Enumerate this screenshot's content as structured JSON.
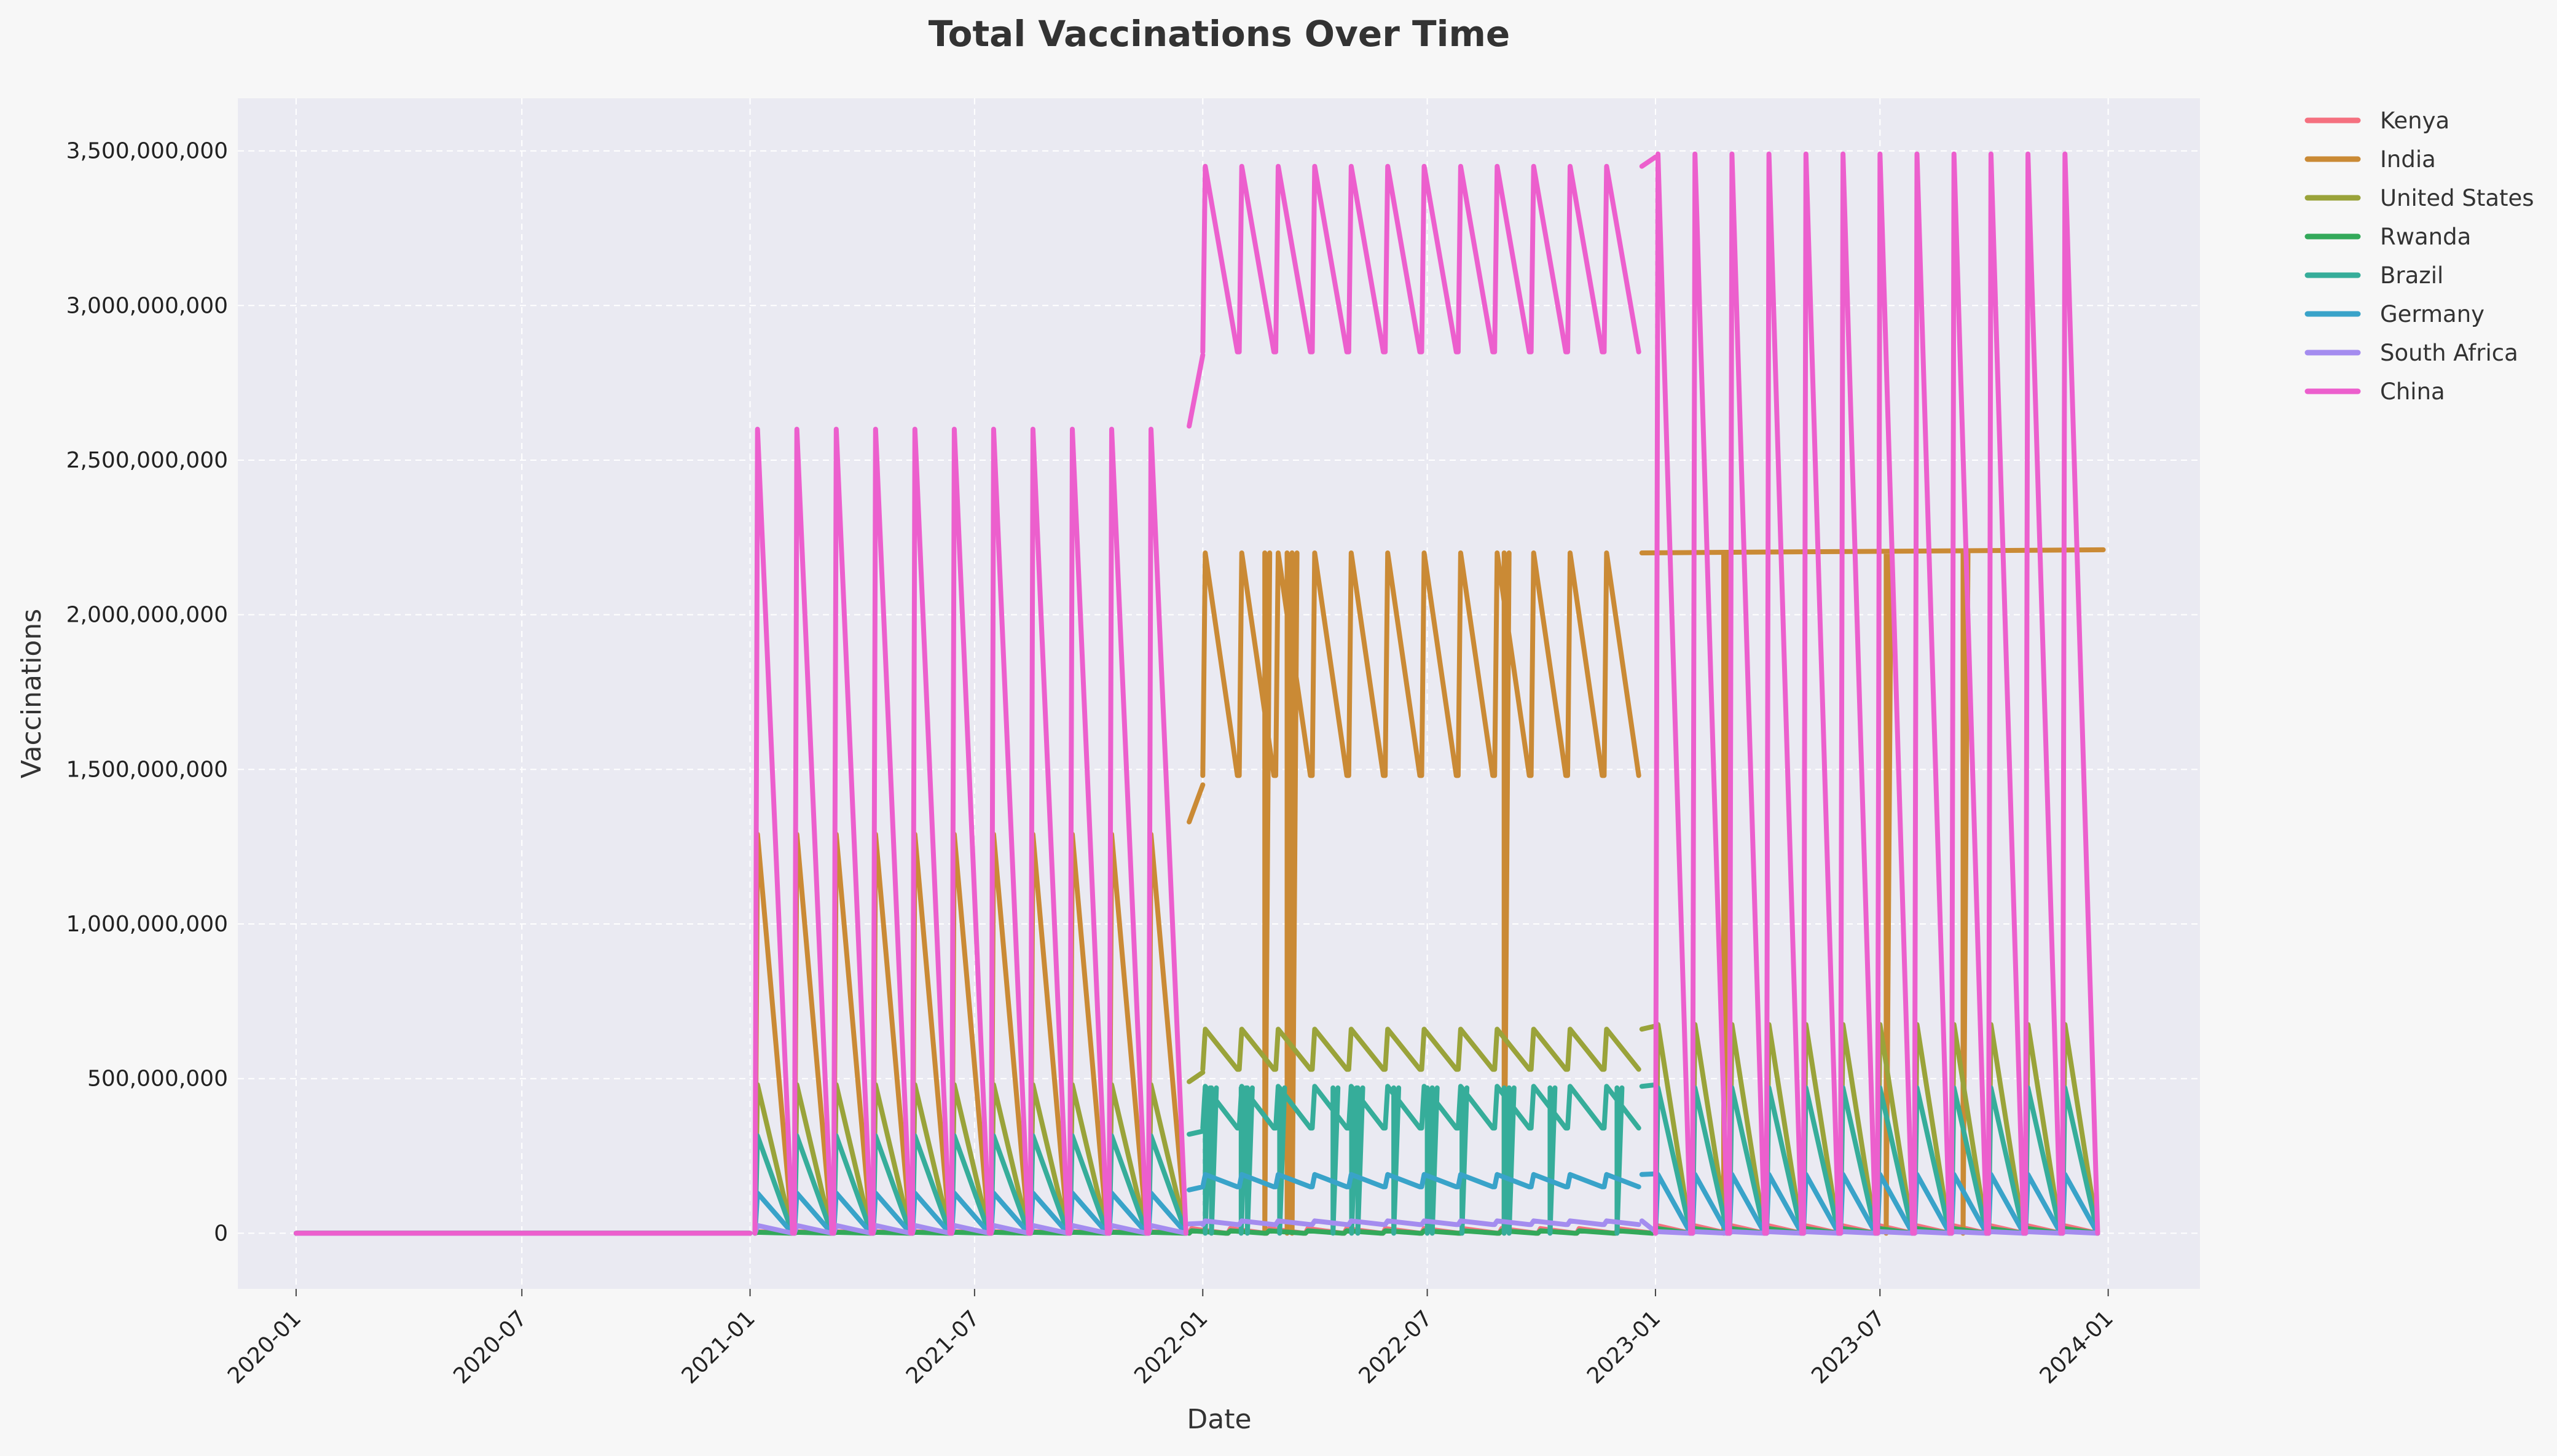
{
  "chart_data": {
    "type": "line",
    "title": "Total Vaccinations Over Time",
    "xlabel": "Date",
    "ylabel": "Vaccinations",
    "x_ticks": [
      "2020-01",
      "2020-07",
      "2021-01",
      "2021-07",
      "2022-01",
      "2022-07",
      "2023-01",
      "2023-07",
      "2024-01"
    ],
    "y_ticks": [
      "0",
      "500,000,000",
      "1,000,000,000",
      "1,500,000,000",
      "2,000,000,000",
      "2,500,000,000",
      "3,000,000,000",
      "3,500,000,000"
    ],
    "xlim": [
      "2019-11-15",
      "2024-03-15"
    ],
    "ylim": [
      -180000000,
      3670000000
    ],
    "grid": true,
    "legend_position": "outside-top-right",
    "series": [
      {
        "name": "Kenya",
        "color": "#f5707f",
        "segments": [
          {
            "kind": "flat",
            "start": "2020-01-01",
            "end": "2021-01-01",
            "value": 0
          },
          {
            "kind": "sawtooth",
            "start": "2021-01-05",
            "end": "2021-12-20",
            "count": 11,
            "low": 0,
            "high": 5000000
          },
          {
            "kind": "sawtooth",
            "start": "2021-12-21",
            "end": "2022-12-31",
            "count": 12,
            "low": 0,
            "high": 15000000
          },
          {
            "kind": "sawtooth",
            "start": "2023-01-01",
            "end": "2023-12-25",
            "count": 12,
            "low": 0,
            "high": 24000000
          }
        ]
      },
      {
        "name": "India",
        "color": "#ca8a35",
        "segments": [
          {
            "kind": "flat",
            "start": "2020-01-01",
            "end": "2021-01-01",
            "value": 0
          },
          {
            "kind": "sawtooth",
            "start": "2021-01-05",
            "end": "2021-12-20",
            "count": 11,
            "low": 0,
            "high": 1290000000
          },
          {
            "kind": "line",
            "points": [
              [
                "2021-12-21",
                1330000000
              ],
              [
                "2022-01-01",
                1450000000
              ]
            ]
          },
          {
            "kind": "sawtooth",
            "start": "2022-01-01",
            "end": "2022-12-20",
            "count": 12,
            "low": 1480000000,
            "high": 2200000000
          },
          {
            "kind": "line",
            "points": [
              [
                "2022-12-21",
                2200000000
              ],
              [
                "2023-12-28",
                2210000000
              ]
            ]
          },
          {
            "kind": "spikes",
            "dates": [
              "2022-02-20",
              "2022-03-10",
              "2022-03-14",
              "2022-09-01",
              "2023-02-25",
              "2023-07-06",
              "2023-09-06"
            ],
            "low": 0,
            "high": 2200000000
          }
        ]
      },
      {
        "name": "United States",
        "color": "#9aa33a",
        "segments": [
          {
            "kind": "flat",
            "start": "2020-01-01",
            "end": "2021-01-01",
            "value": 0
          },
          {
            "kind": "sawtooth",
            "start": "2021-01-05",
            "end": "2021-12-20",
            "count": 11,
            "low": 0,
            "high": 480000000
          },
          {
            "kind": "line",
            "points": [
              [
                "2021-12-21",
                490000000
              ],
              [
                "2022-01-01",
                520000000
              ]
            ]
          },
          {
            "kind": "sawtooth",
            "start": "2022-01-01",
            "end": "2022-12-20",
            "count": 12,
            "low": 530000000,
            "high": 660000000
          },
          {
            "kind": "line",
            "points": [
              [
                "2022-12-21",
                660000000
              ],
              [
                "2023-01-01",
                670000000
              ]
            ]
          },
          {
            "kind": "sawtooth",
            "start": "2023-01-01",
            "end": "2023-12-25",
            "count": 12,
            "low": 0,
            "high": 675000000
          }
        ]
      },
      {
        "name": "Rwanda",
        "color": "#33a95a",
        "segments": [
          {
            "kind": "flat",
            "start": "2020-01-01",
            "end": "2021-01-01",
            "value": 0
          },
          {
            "kind": "sawtooth",
            "start": "2021-01-05",
            "end": "2021-12-20",
            "count": 11,
            "low": 0,
            "high": 3000000
          },
          {
            "kind": "sawtooth",
            "start": "2021-12-21",
            "end": "2022-12-31",
            "count": 12,
            "low": 0,
            "high": 8000000
          },
          {
            "kind": "sawtooth",
            "start": "2023-01-01",
            "end": "2023-12-25",
            "count": 12,
            "low": 0,
            "high": 15000000
          }
        ]
      },
      {
        "name": "Brazil",
        "color": "#36ad9a",
        "segments": [
          {
            "kind": "flat",
            "start": "2020-01-01",
            "end": "2021-01-01",
            "value": 0
          },
          {
            "kind": "sawtooth",
            "start": "2021-01-05",
            "end": "2021-12-20",
            "count": 11,
            "low": 0,
            "high": 315000000
          },
          {
            "kind": "line",
            "points": [
              [
                "2021-12-21",
                320000000
              ],
              [
                "2022-01-01",
                330000000
              ]
            ]
          },
          {
            "kind": "sawtooth",
            "start": "2022-01-01",
            "end": "2022-12-20",
            "count": 12,
            "low": 340000000,
            "high": 475000000
          },
          {
            "kind": "line",
            "points": [
              [
                "2022-12-21",
                475000000
              ],
              [
                "2023-01-01",
                480000000
              ]
            ]
          },
          {
            "kind": "sawtooth",
            "start": "2023-01-01",
            "end": "2023-12-25",
            "count": 12,
            "low": 0,
            "high": 470000000
          },
          {
            "kind": "spikes",
            "dates": [
              "2022-01-03",
              "2022-01-08",
              "2022-02-01",
              "2022-02-06",
              "2022-03-04",
              "2022-04-16",
              "2022-05-01",
              "2022-05-06",
              "2022-06-04",
              "2022-07-01",
              "2022-07-05",
              "2022-07-29",
              "2022-09-01",
              "2022-09-05",
              "2022-10-08",
              "2022-12-01"
            ],
            "low": 0,
            "high": 470000000
          }
        ]
      },
      {
        "name": "Germany",
        "color": "#39a3c9",
        "segments": [
          {
            "kind": "flat",
            "start": "2020-01-01",
            "end": "2021-01-01",
            "value": 0
          },
          {
            "kind": "sawtooth",
            "start": "2021-01-05",
            "end": "2021-12-20",
            "count": 11,
            "low": 0,
            "high": 130000000
          },
          {
            "kind": "line",
            "points": [
              [
                "2021-12-21",
                140000000
              ],
              [
                "2022-01-01",
                150000000
              ]
            ]
          },
          {
            "kind": "sawtooth",
            "start": "2022-01-01",
            "end": "2022-12-20",
            "count": 12,
            "low": 150000000,
            "high": 190000000
          },
          {
            "kind": "line",
            "points": [
              [
                "2022-12-21",
                190000000
              ],
              [
                "2023-01-01",
                192000000
              ]
            ]
          },
          {
            "kind": "sawtooth",
            "start": "2023-01-01",
            "end": "2023-12-25",
            "count": 12,
            "low": 0,
            "high": 190000000
          }
        ]
      },
      {
        "name": "South Africa",
        "color": "#a48cef",
        "segments": [
          {
            "kind": "flat",
            "start": "2020-01-01",
            "end": "2021-01-01",
            "value": 0
          },
          {
            "kind": "sawtooth",
            "start": "2021-01-05",
            "end": "2021-12-20",
            "count": 11,
            "low": 0,
            "high": 25000000
          },
          {
            "kind": "line",
            "points": [
              [
                "2021-12-21",
                30000000
              ],
              [
                "2022-01-01",
                32000000
              ]
            ]
          },
          {
            "kind": "sawtooth",
            "start": "2022-01-01",
            "end": "2022-12-20",
            "count": 12,
            "low": 28000000,
            "high": 40000000
          },
          {
            "kind": "line",
            "points": [
              [
                "2022-12-21",
                40000000
              ],
              [
                "2023-01-01",
                5000000
              ]
            ]
          },
          {
            "kind": "sawtooth",
            "start": "2023-01-01",
            "end": "2023-12-25",
            "count": 12,
            "low": 0,
            "high": 5000000
          }
        ]
      },
      {
        "name": "China",
        "color": "#ec5fcd",
        "segments": [
          {
            "kind": "flat",
            "start": "2020-01-01",
            "end": "2021-01-01",
            "value": 0
          },
          {
            "kind": "sawtooth",
            "start": "2021-01-05",
            "end": "2021-12-20",
            "count": 11,
            "low": 0,
            "high": 2600000000
          },
          {
            "kind": "line",
            "points": [
              [
                "2021-12-21",
                2610000000
              ],
              [
                "2022-01-01",
                2840000000
              ]
            ]
          },
          {
            "kind": "sawtooth",
            "start": "2022-01-01",
            "end": "2022-12-20",
            "count": 12,
            "low": 2850000000,
            "high": 3450000000
          },
          {
            "kind": "line",
            "points": [
              [
                "2022-12-21",
                3450000000
              ],
              [
                "2023-01-01",
                3480000000
              ]
            ]
          },
          {
            "kind": "sawtooth",
            "start": "2023-01-01",
            "end": "2023-12-25",
            "count": 12,
            "low": 0,
            "high": 3490000000
          }
        ]
      }
    ]
  }
}
